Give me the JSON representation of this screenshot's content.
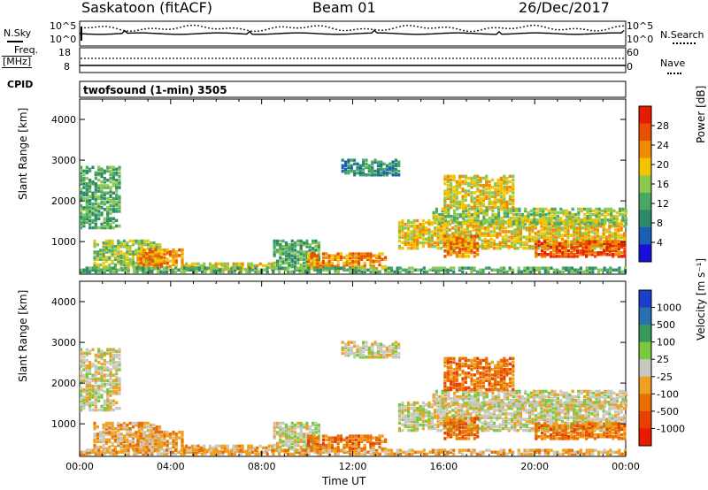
{
  "header": {
    "station": "Saskatoon (fitACF)",
    "beam": "Beam 01",
    "date": "26/Dec/2017"
  },
  "strip_labels": {
    "nsky": "N.Sky",
    "freq_top": "Freq.",
    "freq_unit": "[MHz]",
    "cpid": "CPID",
    "nsearch": "N.Search",
    "nave": "Nave",
    "nsky_ticks": [
      "10^5",
      "10^0"
    ],
    "nsearch_ticks": [
      "10^5",
      "10^0"
    ],
    "freq_ticks": [
      "18",
      "8"
    ],
    "nave_ticks": [
      "60",
      "0"
    ],
    "program": "twofsound (1-min) 3505"
  },
  "colors": {
    "power_scale": [
      "#1a0fd8",
      "#1a5fb4",
      "#2a8a6a",
      "#4aa864",
      "#8cc850",
      "#f5c400",
      "#f08a00",
      "#e85000",
      "#e81a00"
    ],
    "velocity_scale": [
      "#1a3fcc",
      "#2a6fb0",
      "#3a9a5a",
      "#7ac840",
      "#c8c8c0",
      "#f0a020",
      "#e87000",
      "#e84000",
      "#e81a00"
    ]
  },
  "chart_data": [
    {
      "type": "heatmap",
      "title": "",
      "xlabel": "Time UT",
      "ylabel": "Slant Range [km]",
      "x_ticks": [
        "00:00",
        "04:00",
        "08:00",
        "12:00",
        "16:00",
        "20:00",
        "00:00"
      ],
      "y_ticks": [
        "1000",
        "2000",
        "3000",
        "4000"
      ],
      "ylim": [
        200,
        4500
      ],
      "colorbar_label": "Power [dB]",
      "colorbar_ticks": [
        "4",
        "8",
        "12",
        "16",
        "20",
        "24",
        "28"
      ],
      "colorbar_range": [
        0,
        30
      ]
    },
    {
      "type": "heatmap",
      "title": "",
      "xlabel": "Time UT",
      "ylabel": "Slant Range [km]",
      "x_ticks": [
        "00:00",
        "04:00",
        "08:00",
        "12:00",
        "16:00",
        "20:00",
        "00:00"
      ],
      "y_ticks": [
        "1000",
        "2000",
        "3000",
        "4000"
      ],
      "ylim": [
        200,
        4500
      ],
      "colorbar_label": "Velocity [m s⁻¹]",
      "colorbar_ticks": [
        "1000",
        "500",
        "100",
        "25",
        "-25",
        "-100",
        "-500",
        "-1000"
      ]
    }
  ]
}
